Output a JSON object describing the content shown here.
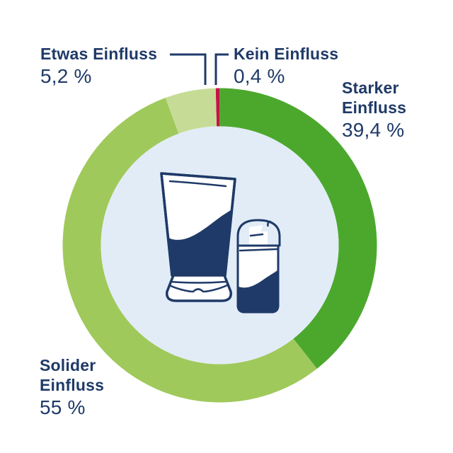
{
  "page": {
    "background_color": "#ffffff",
    "text_color": "#1F3A68"
  },
  "chart_data": {
    "type": "pie",
    "subtype": "donut",
    "title": "",
    "unit": "%",
    "legend": "none",
    "clockwise": true,
    "rotation_deg": -1.5,
    "slices": [
      {
        "label": "Kein Einfluss",
        "value": 0.4,
        "display": "0,4 %",
        "color": "#C41446"
      },
      {
        "label": "Starker Einfluss",
        "value": 39.4,
        "display": "39,4 %",
        "color": "#4CA82D"
      },
      {
        "label": "Solider Einfluss",
        "value": 55,
        "display": "55 %",
        "color": "#A0C95B"
      },
      {
        "label": "Etwas Einfluss",
        "value": 5.2,
        "display": "5,2 %",
        "color": "#C6DC96"
      }
    ],
    "colors": {
      "inner_circle": "#E2ECF7",
      "leader_line": "#1F3A68",
      "illustration_outline": "#1F3A68",
      "illustration_fill": "#ffffff",
      "illustration_dark": "#1F3A68"
    },
    "center_illustration": "cosmetic-tube-and-pump-dispenser"
  }
}
